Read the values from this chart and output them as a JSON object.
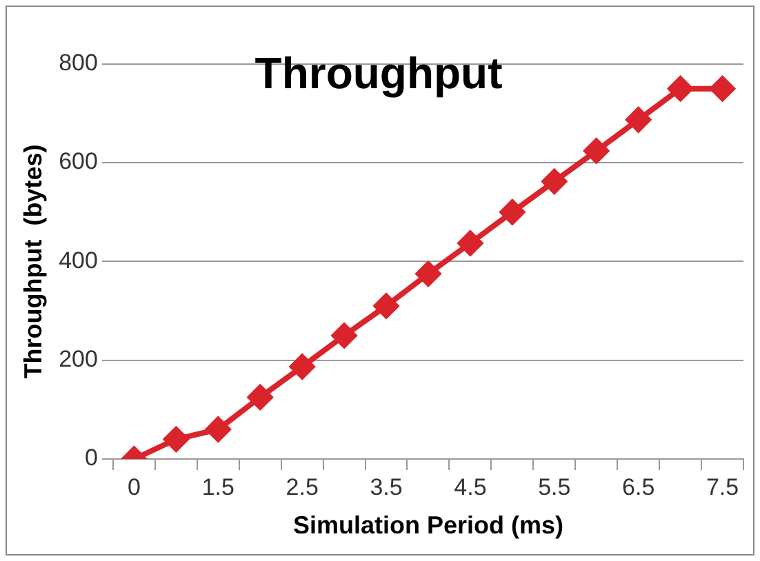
{
  "chart_data": {
    "type": "line",
    "title": "Throughput",
    "xlabel": "Simulation Period (ms)",
    "ylabel": "Throughput  (bytes)",
    "categories": [
      "0",
      null,
      "1.5",
      null,
      "2.5",
      null,
      "3.5",
      null,
      "4.5",
      null,
      "5.5",
      null,
      "6.5",
      null,
      "7.5"
    ],
    "series": [
      {
        "color": "#d9242b",
        "values": [
          0,
          40,
          60,
          125,
          187,
          250,
          310,
          375,
          437,
          500,
          562,
          624,
          687,
          750,
          750
        ]
      }
    ],
    "ylim": [
      0,
      800
    ],
    "yticks": [
      0,
      200,
      400,
      600,
      800
    ],
    "grid": "y",
    "legend": false,
    "marker": "diamond",
    "line_style": "solid"
  }
}
